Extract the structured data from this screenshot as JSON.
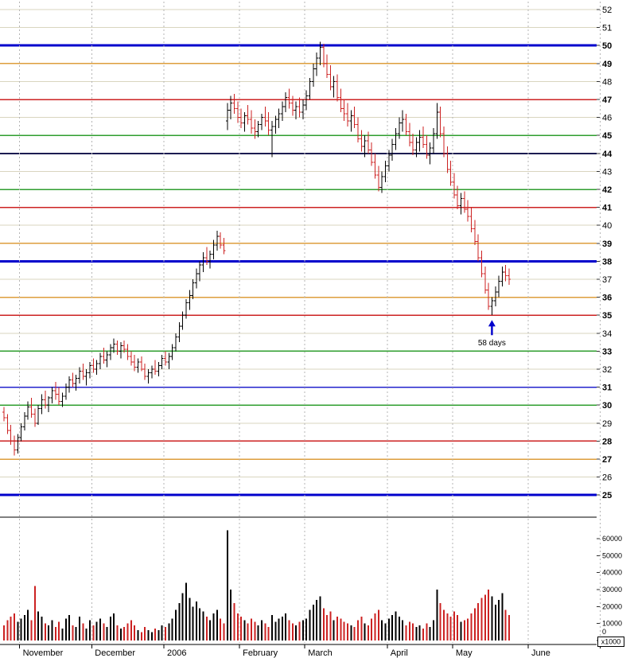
{
  "chart_data": {
    "type": "ohlc",
    "title": "",
    "legend": "none",
    "grid": "on",
    "price_axis": {
      "side": "right",
      "min": 25,
      "max": 52,
      "tick_step": 1
    },
    "volume_axis": {
      "ticks": [
        60000,
        50000,
        40000,
        30000,
        20000,
        10000,
        0
      ],
      "multiplier_label": "x1000"
    },
    "colors": {
      "up": "#000000",
      "down": "#cc2222",
      "grid_default": "#d9d5bf",
      "support_blue": "#0000cc",
      "support_red": "#cc2222",
      "support_green": "#2f9e2f",
      "support_orange": "#dd9e3c",
      "support_navy": "#1c1c52"
    },
    "grid_lines": [
      {
        "price": 52,
        "label": "52",
        "color": "#d9d5bf",
        "width": 1,
        "bold": false
      },
      {
        "price": 51,
        "label": "51",
        "color": "#d9d5bf",
        "width": 1,
        "bold": false
      },
      {
        "price": 50,
        "label": "50",
        "color": "#0000cc",
        "width": 3,
        "bold": true
      },
      {
        "price": 49,
        "label": "49",
        "color": "#dd9e3c",
        "width": 1.5,
        "bold": true
      },
      {
        "price": 48,
        "label": "48",
        "color": "#d9d5bf",
        "width": 1,
        "bold": false
      },
      {
        "price": 47,
        "label": "47",
        "color": "#cc2222",
        "width": 1.5,
        "bold": true
      },
      {
        "price": 46,
        "label": "46",
        "color": "#d9d5bf",
        "width": 1,
        "bold": false
      },
      {
        "price": 45,
        "label": "45",
        "color": "#2f9e2f",
        "width": 1.5,
        "bold": true
      },
      {
        "price": 44,
        "label": "44",
        "color": "#1c1c52",
        "width": 2,
        "bold": true
      },
      {
        "price": 43,
        "label": "43",
        "color": "#d9d5bf",
        "width": 1,
        "bold": false
      },
      {
        "price": 42,
        "label": "42",
        "color": "#2f9e2f",
        "width": 1.5,
        "bold": true
      },
      {
        "price": 41,
        "label": "41",
        "color": "#cc2222",
        "width": 1.5,
        "bold": true
      },
      {
        "price": 40,
        "label": "40",
        "color": "#d9d5bf",
        "width": 1,
        "bold": false
      },
      {
        "price": 39,
        "label": "39",
        "color": "#dd9e3c",
        "width": 1.5,
        "bold": true
      },
      {
        "price": 38,
        "label": "38",
        "color": "#0000cc",
        "width": 3,
        "bold": true
      },
      {
        "price": 37,
        "label": "37",
        "color": "#d9d5bf",
        "width": 1,
        "bold": false
      },
      {
        "price": 36,
        "label": "36",
        "color": "#dd9e3c",
        "width": 1.5,
        "bold": true
      },
      {
        "price": 35,
        "label": "35",
        "color": "#cc2222",
        "width": 1.5,
        "bold": true
      },
      {
        "price": 34,
        "label": "34",
        "color": "#d9d5bf",
        "width": 1,
        "bold": false
      },
      {
        "price": 33,
        "label": "33",
        "color": "#2f9e2f",
        "width": 1.5,
        "bold": true
      },
      {
        "price": 32,
        "label": "32",
        "color": "#d9d5bf",
        "width": 1,
        "bold": false
      },
      {
        "price": 31,
        "label": "31",
        "color": "#2222cc",
        "width": 1.5,
        "bold": true
      },
      {
        "price": 30,
        "label": "30",
        "color": "#2f9e2f",
        "width": 1.5,
        "bold": true
      },
      {
        "price": 29,
        "label": "29",
        "color": "#d9d5bf",
        "width": 1,
        "bold": false
      },
      {
        "price": 28,
        "label": "28",
        "color": "#cc2222",
        "width": 1.5,
        "bold": true
      },
      {
        "price": 27,
        "label": "27",
        "color": "#dd9e3c",
        "width": 1.5,
        "bold": true
      },
      {
        "price": 26,
        "label": "26",
        "color": "#d9d5bf",
        "width": 1,
        "bold": false
      },
      {
        "price": 25,
        "label": "25",
        "color": "#0000cc",
        "width": 3,
        "bold": true
      }
    ],
    "month_ticks": [
      {
        "bar": 5,
        "label": "November"
      },
      {
        "bar": 26,
        "label": "December"
      },
      {
        "bar": 47,
        "label": "2006"
      },
      {
        "bar": 69,
        "label": "February"
      },
      {
        "bar": 88,
        "label": "March"
      },
      {
        "bar": 112,
        "label": "April"
      },
      {
        "bar": 131,
        "label": "May"
      },
      {
        "bar": 153,
        "label": "June"
      },
      {
        "bar": 174,
        "label": ""
      }
    ],
    "annotation": {
      "text": "58 days",
      "bar": 142,
      "price": 35.0,
      "color": "#0000cc"
    },
    "bars_format": [
      "open",
      "high",
      "low",
      "close",
      "volume"
    ],
    "bars": [
      [
        29.6,
        29.9,
        29.1,
        29.3,
        9000
      ],
      [
        29.3,
        29.5,
        28.4,
        28.6,
        12000
      ],
      [
        28.6,
        28.9,
        27.8,
        28.0,
        14000
      ],
      [
        28.0,
        28.3,
        27.2,
        27.5,
        16000
      ],
      [
        27.5,
        28.4,
        27.3,
        28.2,
        11000
      ],
      [
        28.2,
        29.0,
        28.0,
        28.8,
        13000
      ],
      [
        28.8,
        29.6,
        28.6,
        29.4,
        15000
      ],
      [
        29.4,
        30.2,
        29.2,
        29.9,
        18000
      ],
      [
        29.9,
        30.4,
        29.3,
        29.5,
        12000
      ],
      [
        29.5,
        29.8,
        28.8,
        29.0,
        32000
      ],
      [
        29.0,
        30.0,
        28.9,
        29.8,
        17000
      ],
      [
        29.8,
        30.6,
        29.5,
        30.3,
        14000
      ],
      [
        30.3,
        30.8,
        29.8,
        30.0,
        10000
      ],
      [
        30.0,
        30.5,
        29.6,
        30.4,
        9000
      ],
      [
        30.4,
        31.0,
        30.1,
        30.8,
        12000
      ],
      [
        30.8,
        31.3,
        30.3,
        30.6,
        8000
      ],
      [
        30.6,
        31.0,
        30.0,
        30.2,
        11000
      ],
      [
        30.2,
        30.7,
        29.9,
        30.5,
        7000
      ],
      [
        30.5,
        31.2,
        30.3,
        31.0,
        13000
      ],
      [
        31.0,
        31.6,
        30.7,
        31.4,
        15000
      ],
      [
        31.4,
        31.8,
        31.0,
        31.2,
        9000
      ],
      [
        31.2,
        31.7,
        30.8,
        31.5,
        8000
      ],
      [
        31.5,
        32.1,
        31.2,
        31.9,
        14000
      ],
      [
        31.9,
        32.3,
        31.4,
        31.6,
        10000
      ],
      [
        31.6,
        32.0,
        31.1,
        31.8,
        7000
      ],
      [
        31.8,
        32.4,
        31.5,
        32.2,
        12000
      ],
      [
        32.2,
        32.6,
        31.8,
        32.0,
        9000
      ],
      [
        32.0,
        32.5,
        31.7,
        32.3,
        11000
      ],
      [
        32.3,
        32.9,
        32.0,
        32.7,
        13000
      ],
      [
        32.7,
        33.2,
        32.3,
        32.5,
        10000
      ],
      [
        32.5,
        33.0,
        32.1,
        32.8,
        8000
      ],
      [
        32.8,
        33.4,
        32.5,
        33.2,
        14000
      ],
      [
        33.2,
        33.7,
        32.9,
        33.4,
        16000
      ],
      [
        33.4,
        33.6,
        32.8,
        33.0,
        9000
      ],
      [
        33.0,
        33.5,
        32.6,
        33.3,
        7000
      ],
      [
        33.3,
        33.6,
        32.9,
        33.1,
        8000
      ],
      [
        33.1,
        33.4,
        32.5,
        32.7,
        10000
      ],
      [
        32.7,
        33.0,
        32.2,
        32.4,
        12000
      ],
      [
        32.4,
        32.8,
        31.9,
        32.1,
        9000
      ],
      [
        32.1,
        32.6,
        31.8,
        32.4,
        6000
      ],
      [
        32.4,
        32.7,
        31.9,
        32.0,
        5000
      ],
      [
        32.0,
        32.3,
        31.4,
        31.6,
        8000
      ],
      [
        31.6,
        32.0,
        31.2,
        31.8,
        6000
      ],
      [
        31.8,
        32.2,
        31.5,
        32.0,
        5000
      ],
      [
        32.0,
        32.5,
        31.7,
        31.9,
        7000
      ],
      [
        31.9,
        32.4,
        31.6,
        32.2,
        6000
      ],
      [
        32.2,
        32.8,
        32.0,
        32.6,
        9000
      ],
      [
        32.6,
        33.0,
        32.2,
        32.4,
        8000
      ],
      [
        32.4,
        32.9,
        32.0,
        32.7,
        10000
      ],
      [
        32.7,
        33.4,
        32.5,
        33.2,
        13000
      ],
      [
        33.2,
        34.0,
        33.0,
        33.8,
        18000
      ],
      [
        33.8,
        34.6,
        33.5,
        34.4,
        22000
      ],
      [
        34.4,
        35.2,
        34.2,
        35.0,
        28000
      ],
      [
        35.0,
        35.9,
        34.8,
        35.7,
        34000
      ],
      [
        35.7,
        36.4,
        35.3,
        36.1,
        25000
      ],
      [
        36.1,
        37.0,
        35.9,
        36.8,
        20000
      ],
      [
        36.8,
        37.6,
        36.5,
        37.3,
        23000
      ],
      [
        37.3,
        38.0,
        36.9,
        37.8,
        19000
      ],
      [
        37.8,
        38.5,
        37.4,
        38.2,
        17000
      ],
      [
        38.2,
        38.8,
        37.8,
        38.0,
        14000
      ],
      [
        38.0,
        38.6,
        37.6,
        38.4,
        12000
      ],
      [
        38.4,
        39.2,
        38.1,
        38.9,
        16000
      ],
      [
        38.9,
        39.7,
        38.6,
        39.4,
        18000
      ],
      [
        39.4,
        39.6,
        38.7,
        38.9,
        13000
      ],
      [
        38.9,
        39.3,
        38.4,
        38.6,
        10000
      ],
      [
        45.8,
        46.8,
        45.3,
        46.4,
        65000
      ],
      [
        46.4,
        47.2,
        45.9,
        46.8,
        30000
      ],
      [
        46.8,
        47.3,
        46.2,
        46.5,
        22000
      ],
      [
        46.5,
        46.9,
        45.7,
        46.0,
        16000
      ],
      [
        46.0,
        46.5,
        45.4,
        45.7,
        14000
      ],
      [
        45.7,
        46.3,
        45.2,
        46.1,
        12000
      ],
      [
        46.1,
        46.7,
        45.6,
        45.9,
        10000
      ],
      [
        45.9,
        46.4,
        45.1,
        45.4,
        13000
      ],
      [
        45.4,
        45.9,
        44.8,
        45.2,
        11000
      ],
      [
        45.2,
        45.8,
        44.9,
        45.6,
        9000
      ],
      [
        45.6,
        46.2,
        45.3,
        46.0,
        12000
      ],
      [
        46.0,
        46.6,
        45.5,
        45.8,
        10000
      ],
      [
        45.8,
        46.3,
        45.0,
        45.3,
        8000
      ],
      [
        45.3,
        45.8,
        43.8,
        45.5,
        15000
      ],
      [
        45.5,
        46.1,
        45.1,
        45.9,
        11000
      ],
      [
        45.9,
        46.5,
        45.4,
        46.2,
        13000
      ],
      [
        46.2,
        46.9,
        45.8,
        46.6,
        14000
      ],
      [
        46.6,
        47.4,
        46.3,
        47.1,
        16000
      ],
      [
        47.1,
        47.6,
        46.5,
        46.8,
        12000
      ],
      [
        46.8,
        47.2,
        46.1,
        46.4,
        10000
      ],
      [
        46.4,
        46.9,
        45.9,
        46.6,
        9000
      ],
      [
        46.6,
        47.1,
        46.0,
        46.3,
        11000
      ],
      [
        46.3,
        47.0,
        45.9,
        46.7,
        12000
      ],
      [
        46.7,
        47.5,
        46.4,
        47.2,
        13000
      ],
      [
        47.2,
        48.2,
        47.0,
        48.0,
        18000
      ],
      [
        48.0,
        49.0,
        47.7,
        48.7,
        21000
      ],
      [
        48.7,
        49.6,
        48.3,
        49.3,
        24000
      ],
      [
        49.3,
        50.2,
        48.9,
        49.9,
        26000
      ],
      [
        49.9,
        50.1,
        48.8,
        49.0,
        19000
      ],
      [
        49.0,
        49.5,
        48.2,
        48.4,
        15000
      ],
      [
        48.4,
        48.9,
        47.5,
        47.7,
        17000
      ],
      [
        47.7,
        48.3,
        47.1,
        48.0,
        12000
      ],
      [
        48.0,
        48.4,
        46.9,
        47.1,
        14000
      ],
      [
        47.1,
        47.6,
        46.3,
        46.5,
        13000
      ],
      [
        46.5,
        47.0,
        45.8,
        46.2,
        11000
      ],
      [
        46.2,
        46.8,
        45.5,
        45.8,
        10000
      ],
      [
        45.8,
        46.4,
        45.2,
        46.1,
        9000
      ],
      [
        46.1,
        46.6,
        45.4,
        45.6,
        8000
      ],
      [
        45.6,
        46.0,
        44.6,
        44.8,
        12000
      ],
      [
        44.8,
        45.3,
        44.1,
        44.4,
        14000
      ],
      [
        44.4,
        45.0,
        43.8,
        44.7,
        10000
      ],
      [
        44.7,
        45.2,
        44.0,
        44.2,
        9000
      ],
      [
        44.2,
        44.6,
        43.3,
        43.5,
        13000
      ],
      [
        43.5,
        44.0,
        42.6,
        42.8,
        16000
      ],
      [
        42.8,
        43.3,
        41.9,
        42.1,
        18000
      ],
      [
        42.1,
        43.0,
        41.8,
        42.7,
        12000
      ],
      [
        42.7,
        43.6,
        42.4,
        43.3,
        10000
      ],
      [
        43.3,
        44.2,
        43.0,
        43.9,
        13000
      ],
      [
        43.9,
        44.8,
        43.6,
        44.5,
        15000
      ],
      [
        44.5,
        45.4,
        44.2,
        45.1,
        17000
      ],
      [
        45.1,
        46.0,
        44.8,
        45.7,
        14000
      ],
      [
        45.7,
        46.4,
        45.2,
        45.9,
        12000
      ],
      [
        45.9,
        46.2,
        45.0,
        45.2,
        9000
      ],
      [
        45.2,
        45.7,
        44.4,
        44.6,
        11000
      ],
      [
        44.6,
        45.1,
        43.9,
        44.2,
        10000
      ],
      [
        44.2,
        44.9,
        43.8,
        44.6,
        8000
      ],
      [
        44.6,
        45.3,
        44.1,
        44.9,
        9000
      ],
      [
        44.9,
        45.5,
        44.3,
        44.5,
        7000
      ],
      [
        44.5,
        45.0,
        43.7,
        43.9,
        10000
      ],
      [
        43.9,
        44.6,
        43.4,
        44.3,
        8000
      ],
      [
        44.3,
        45.4,
        44.0,
        45.1,
        12000
      ],
      [
        45.1,
        46.8,
        44.8,
        46.3,
        30000
      ],
      [
        46.3,
        46.6,
        44.9,
        45.1,
        22000
      ],
      [
        45.1,
        45.5,
        43.8,
        44.0,
        18000
      ],
      [
        44.0,
        44.4,
        42.9,
        43.1,
        16000
      ],
      [
        43.1,
        43.6,
        42.2,
        42.4,
        14000
      ],
      [
        42.4,
        42.9,
        41.5,
        41.7,
        17000
      ],
      [
        41.7,
        42.2,
        40.9,
        41.1,
        15000
      ],
      [
        41.1,
        41.8,
        40.6,
        41.5,
        11000
      ],
      [
        41.5,
        41.9,
        40.7,
        40.9,
        12000
      ],
      [
        40.9,
        41.4,
        40.2,
        40.5,
        13000
      ],
      [
        40.5,
        41.0,
        39.6,
        39.8,
        16000
      ],
      [
        39.8,
        40.3,
        38.9,
        39.1,
        19000
      ],
      [
        39.1,
        39.5,
        38.0,
        38.2,
        22000
      ],
      [
        38.2,
        38.6,
        37.1,
        37.3,
        25000
      ],
      [
        37.3,
        37.7,
        36.2,
        36.4,
        27000
      ],
      [
        36.4,
        36.8,
        35.3,
        35.5,
        30000
      ],
      [
        35.5,
        36.0,
        35.0,
        35.8,
        26000
      ],
      [
        35.8,
        36.6,
        35.5,
        36.3,
        21000
      ],
      [
        36.3,
        37.2,
        36.0,
        36.9,
        24000
      ],
      [
        36.9,
        37.7,
        36.6,
        37.4,
        28000
      ],
      [
        37.4,
        37.8,
        36.9,
        37.2,
        18000
      ],
      [
        37.2,
        37.6,
        36.7,
        37.0,
        15000
      ]
    ]
  }
}
